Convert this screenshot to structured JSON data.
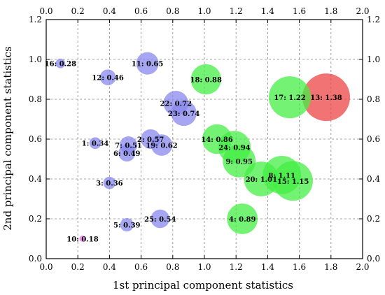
{
  "chart_data": {
    "type": "scatter",
    "subtype": "bubble",
    "title": "",
    "xlabel": "1st principal component statistics",
    "ylabel": "2nd principal component statistics",
    "xlim": [
      0.0,
      2.0
    ],
    "ylim": [
      0.0,
      1.2
    ],
    "x_ticks": [
      "0.0",
      "0.2",
      "0.4",
      "0.6",
      "0.8",
      "1.0",
      "1.2",
      "1.4",
      "1.6",
      "1.8",
      "2.0"
    ],
    "y_ticks": [
      "0.0",
      "0.2",
      "0.4",
      "0.6",
      "0.8",
      "1.0",
      "1.2"
    ],
    "grid": true,
    "mirror_axes": true,
    "colors": {
      "low": "#8888ee",
      "mid": "#44ee44",
      "high": "#ee4444",
      "tiny": "#ee66ee"
    },
    "points": [
      {
        "label": "1: 0.34",
        "x": 0.31,
        "y": 0.58,
        "size": 0.34,
        "color": "low"
      },
      {
        "label": "2: 0.57",
        "x": 0.66,
        "y": 0.6,
        "size": 0.57,
        "color": "low"
      },
      {
        "label": "3: 0.36",
        "x": 0.4,
        "y": 0.38,
        "size": 0.36,
        "color": "low"
      },
      {
        "label": "4: 0.89",
        "x": 1.24,
        "y": 0.2,
        "size": 0.89,
        "color": "mid"
      },
      {
        "label": "5: 0.39",
        "x": 0.51,
        "y": 0.17,
        "size": 0.39,
        "color": "low"
      },
      {
        "label": "6: 0.49",
        "x": 0.51,
        "y": 0.53,
        "size": 0.49,
        "color": "low"
      },
      {
        "label": "7: 0.51",
        "x": 0.52,
        "y": 0.57,
        "size": 0.51,
        "color": "low"
      },
      {
        "label": "8: 1.11",
        "x": 1.49,
        "y": 0.42,
        "size": 1.11,
        "color": "mid"
      },
      {
        "label": "9: 0.95",
        "x": 1.22,
        "y": 0.49,
        "size": 0.95,
        "color": "mid"
      },
      {
        "label": "10: 0.18",
        "x": 0.23,
        "y": 0.1,
        "size": 0.18,
        "color": "tiny"
      },
      {
        "label": "11: 0.65",
        "x": 0.64,
        "y": 0.98,
        "size": 0.65,
        "color": "low"
      },
      {
        "label": "12: 0.46",
        "x": 0.39,
        "y": 0.91,
        "size": 0.46,
        "color": "low"
      },
      {
        "label": "13: 1.38",
        "x": 1.77,
        "y": 0.81,
        "size": 1.38,
        "color": "high"
      },
      {
        "label": "14: 0.86",
        "x": 1.08,
        "y": 0.6,
        "size": 0.86,
        "color": "mid"
      },
      {
        "label": "15: 1.15",
        "x": 1.56,
        "y": 0.39,
        "size": 1.15,
        "color": "mid"
      },
      {
        "label": "16: 0.28",
        "x": 0.09,
        "y": 0.98,
        "size": 0.28,
        "color": "low"
      },
      {
        "label": "17: 1.22",
        "x": 1.54,
        "y": 0.81,
        "size": 1.22,
        "color": "mid"
      },
      {
        "label": "18: 0.88",
        "x": 1.01,
        "y": 0.9,
        "size": 0.88,
        "color": "mid"
      },
      {
        "label": "19: 0.62",
        "x": 0.73,
        "y": 0.57,
        "size": 0.62,
        "color": "low"
      },
      {
        "label": "20: 1.01",
        "x": 1.36,
        "y": 0.4,
        "size": 1.01,
        "color": "mid"
      },
      {
        "label": "22: 0.72",
        "x": 0.82,
        "y": 0.78,
        "size": 0.72,
        "color": "low"
      },
      {
        "label": "23: 0.74",
        "x": 0.87,
        "y": 0.73,
        "size": 0.74,
        "color": "low"
      },
      {
        "label": "24: 0.94",
        "x": 1.19,
        "y": 0.56,
        "size": 0.94,
        "color": "mid"
      },
      {
        "label": "25: 0.54",
        "x": 0.72,
        "y": 0.2,
        "size": 0.54,
        "color": "low"
      }
    ]
  }
}
